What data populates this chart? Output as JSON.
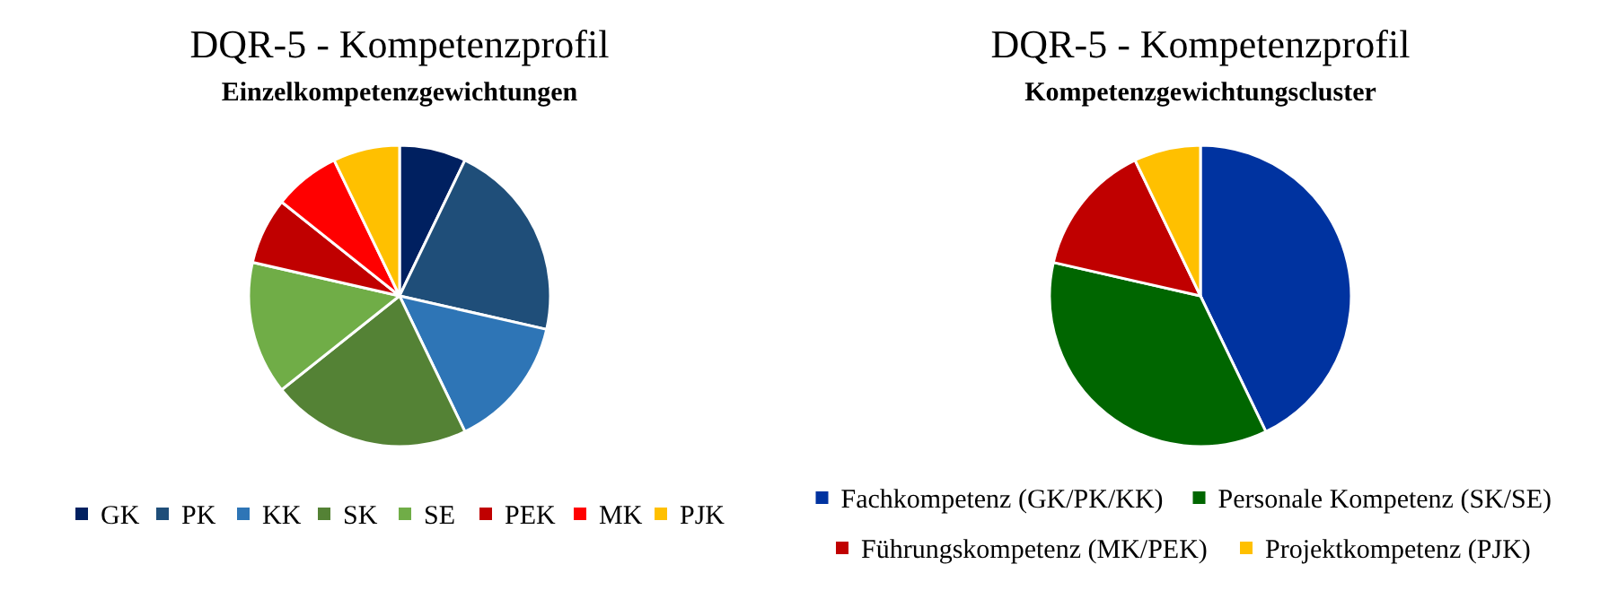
{
  "chart_data": [
    {
      "type": "pie",
      "title": "DQR-5 - Kompetenzprofil",
      "subtitle": "Einzelkompetenzgewichtungen",
      "categories": [
        "GK",
        "PK",
        "KK",
        "SK",
        "SE",
        "PEK",
        "MK",
        "PJK"
      ],
      "values": [
        7.14,
        21.43,
        14.29,
        21.43,
        14.29,
        7.14,
        7.14,
        7.14
      ],
      "colors": [
        "#002060",
        "#1f4e79",
        "#2e75b6",
        "#548235",
        "#70ad47",
        "#c00000",
        "#ff0000",
        "#ffc000"
      ],
      "legend": "bottom"
    },
    {
      "type": "pie",
      "title": "DQR-5 - Kompetenzprofil",
      "subtitle": "Kompetenzgewichtungscluster",
      "categories": [
        "Fachkompetenz (GK/PK/KK)",
        "Personale Kompetenz (SK/SE)",
        "Führungskompetenz (MK/PEK)",
        "Projektkompetenz (PJK)"
      ],
      "values": [
        42.86,
        35.71,
        14.29,
        7.14
      ],
      "colors": [
        "#0033a0",
        "#006600",
        "#c00000",
        "#ffc000"
      ],
      "legend": "bottom"
    }
  ]
}
